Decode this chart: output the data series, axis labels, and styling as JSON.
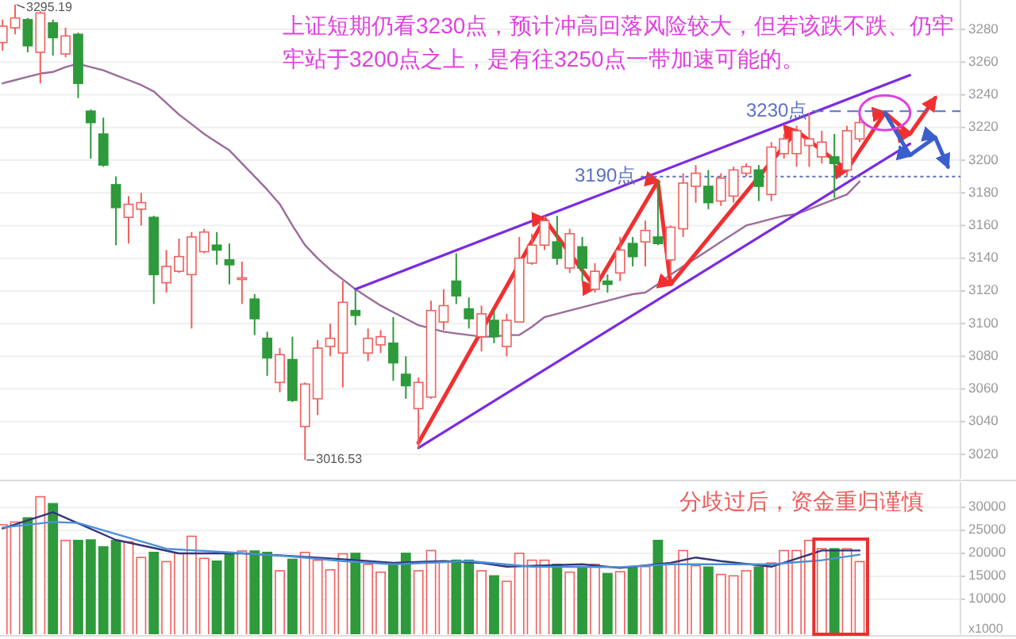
{
  "chart_data": [
    {
      "type": "candlestick",
      "categories": [
        null,
        null,
        null,
        null,
        null,
        null,
        null,
        null,
        null,
        null,
        null,
        null,
        null,
        null,
        null,
        null,
        null,
        null,
        null,
        null,
        null,
        null,
        null,
        null,
        null,
        null,
        null,
        null,
        null,
        null,
        null,
        null,
        null,
        null,
        null,
        null,
        null,
        null,
        null,
        null,
        null,
        null,
        null,
        null,
        null,
        null,
        null,
        null,
        null,
        null,
        null,
        null,
        null,
        null,
        null,
        null,
        null,
        null,
        null,
        null,
        null,
        null,
        null,
        null,
        null,
        null,
        null,
        null,
        null,
        null,
        null,
        null,
        null,
        null,
        null,
        null
      ],
      "ohlc": [
        [
          3272,
          3286,
          3267,
          3282
        ],
        [
          3281,
          3295.19,
          3277,
          3287
        ],
        [
          3286,
          3287,
          3266,
          3270
        ],
        [
          3266,
          3291,
          3247,
          3290
        ],
        [
          3284,
          3286,
          3264,
          3275
        ],
        [
          3265,
          3281,
          3263,
          3276
        ],
        [
          3277,
          3278,
          3238,
          3247
        ],
        [
          3230,
          3231,
          3201,
          3223
        ],
        [
          3216,
          3226,
          3196,
          3197
        ],
        [
          3185,
          3190,
          3148,
          3171
        ],
        [
          3165,
          3178,
          3149,
          3173
        ],
        [
          3170,
          3180,
          3160,
          3174
        ],
        [
          3165,
          3166,
          3112,
          3130
        ],
        [
          3125,
          3145,
          3119,
          3135
        ],
        [
          3132,
          3152,
          3131,
          3141
        ],
        [
          3130,
          3156,
          3097,
          3153
        ],
        [
          3144,
          3158,
          3143,
          3156
        ],
        [
          3148,
          3156,
          3136,
          3145
        ],
        [
          3139,
          3149,
          3124,
          3136
        ],
        [
          3127,
          3138,
          3112,
          3128
        ],
        [
          3115,
          3118,
          3093,
          3103
        ],
        [
          3091,
          3095,
          3068,
          3079
        ],
        [
          3064,
          3085,
          3058,
          3081
        ],
        [
          3078,
          3092,
          3052,
          3053
        ],
        [
          3037,
          3064,
          3016.53,
          3063
        ],
        [
          3054,
          3090,
          3044,
          3085
        ],
        [
          3086,
          3100,
          3080,
          3091
        ],
        [
          3082,
          3126,
          3061,
          3113
        ],
        [
          3108,
          3121,
          3099,
          3105
        ],
        [
          3082,
          3097,
          3077,
          3091
        ],
        [
          3087,
          3096,
          3082,
          3092
        ],
        [
          3088,
          3104,
          3065,
          3076
        ],
        [
          3069,
          3080,
          3054,
          3062
        ],
        [
          3048,
          3067,
          3024,
          3064
        ],
        [
          3055,
          3114,
          3054,
          3108
        ],
        [
          3101,
          3121,
          3096,
          3111
        ],
        [
          3126,
          3143,
          3112,
          3117
        ],
        [
          3109,
          3116,
          3097,
          3103
        ],
        [
          3092,
          3111,
          3083,
          3106
        ],
        [
          3102,
          3108,
          3088,
          3092
        ],
        [
          3086,
          3106,
          3080,
          3102
        ],
        [
          3101,
          3153,
          3101,
          3140
        ],
        [
          3137,
          3155,
          3136,
          3148
        ],
        [
          3148,
          3166,
          3145,
          3163
        ],
        [
          3150,
          3166,
          3136,
          3140
        ],
        [
          3134,
          3158,
          3131,
          3155
        ],
        [
          3147,
          3153,
          3126,
          3134
        ],
        [
          3121,
          3137,
          3119,
          3132
        ],
        [
          3126,
          3130,
          3119,
          3124
        ],
        [
          3131,
          3153,
          3126,
          3145
        ],
        [
          3149,
          3153,
          3135,
          3141
        ],
        [
          3150,
          3163,
          3135,
          3157
        ],
        [
          3153,
          3187,
          3148,
          3149
        ],
        [
          3139,
          3160,
          3129,
          3159
        ],
        [
          3158,
          3192,
          3153,
          3186
        ],
        [
          3184,
          3197,
          3174,
          3192
        ],
        [
          3184,
          3194,
          3170,
          3174
        ],
        [
          3175,
          3192,
          3172,
          3189
        ],
        [
          3178,
          3196,
          3174,
          3194
        ],
        [
          3192,
          3198,
          3190,
          3196
        ],
        [
          3194,
          3197,
          3175,
          3184
        ],
        [
          3179,
          3211,
          3175,
          3208
        ],
        [
          3204,
          3216,
          3201,
          3213
        ],
        [
          3204,
          3221,
          3196,
          3218
        ],
        [
          3209,
          3229,
          3196,
          3213
        ],
        [
          3202,
          3218,
          3198,
          3211
        ],
        [
          3202,
          3216,
          3177,
          3198
        ],
        [
          3194,
          3221,
          3190,
          3218
        ],
        [
          3213,
          3226,
          3211,
          3223
        ],
        null,
        null,
        null,
        null,
        null,
        null,
        null
      ],
      "colors": [
        "#f0605e",
        "#f0605e",
        "#2e9a3b",
        "#f0605e",
        "#2e9a3b",
        "#f0605e",
        "#2e9a3b",
        "#2e9a3b",
        "#2e9a3b",
        "#2e9a3b",
        "#f0605e",
        "#f0605e",
        "#2e9a3b",
        "#f0605e",
        "#f0605e",
        "#f0605e",
        "#f0605e",
        "#2e9a3b",
        "#2e9a3b",
        "#f0605e",
        "#2e9a3b",
        "#2e9a3b",
        "#f0605e",
        "#2e9a3b",
        "#f0605e",
        "#f0605e",
        "#f0605e",
        "#f0605e",
        "#2e9a3b",
        "#f0605e",
        "#f0605e",
        "#2e9a3b",
        "#2e9a3b",
        "#f0605e",
        "#f0605e",
        "#f0605e",
        "#2e9a3b",
        "#2e9a3b",
        "#f0605e",
        "#2e9a3b",
        "#f0605e",
        "#f0605e",
        "#f0605e",
        "#f0605e",
        "#2e9a3b",
        "#f0605e",
        "#2e9a3b",
        "#f0605e",
        "#2e9a3b",
        "#f0605e",
        "#2e9a3b",
        "#f0605e",
        "#2e9a3b",
        "#f0605e",
        "#f0605e",
        "#f0605e",
        "#2e9a3b",
        "#f0605e",
        "#f0605e",
        "#f0605e",
        "#2e9a3b",
        "#f0605e",
        "#f0605e",
        "#f0605e",
        "#f0605e",
        "#f0605e",
        "#2e9a3b",
        "#f0605e",
        "#f0605e",
        null,
        null,
        null,
        null,
        null,
        null,
        null
      ],
      "series": [
        {
          "type": "line",
          "color": "#9b6b9b",
          "values": [
            3247,
            3249,
            3251,
            3253,
            3254,
            3257,
            3259,
            3257,
            3255,
            3252,
            3249,
            3246,
            3242,
            3235,
            3228,
            3222,
            3216,
            3211,
            3206,
            3198,
            3190,
            3182,
            3173,
            3160,
            3148,
            3140,
            3133,
            3127,
            3121,
            3116,
            3111,
            3107,
            3103,
            3099,
            3097,
            3095,
            3094,
            3093,
            3092,
            3092,
            3093,
            3093,
            3098,
            3104,
            3106,
            3108,
            3110,
            3112,
            3114,
            3116,
            3118,
            3119,
            3124,
            3130,
            3135,
            3140,
            3145,
            3150,
            3155,
            3160,
            3162,
            3164,
            3166,
            3167,
            3170,
            3173,
            3176,
            3179,
            3187,
            null,
            null,
            null,
            null,
            null,
            null,
            null
          ]
        },
        {
          "type": "line",
          "color": "#7a2be2",
          "values": [
            null,
            null,
            null,
            null,
            null,
            null,
            null,
            null,
            null,
            null,
            null,
            null,
            null,
            null,
            null,
            null,
            null,
            null,
            null,
            null,
            null,
            null,
            null,
            null,
            null,
            null,
            null,
            null,
            3121,
            null,
            null,
            null,
            null,
            null,
            null,
            null,
            null,
            null,
            null,
            null,
            null,
            null,
            null,
            null,
            null,
            null,
            null,
            null,
            null,
            null,
            null,
            null,
            null,
            null,
            null,
            null,
            null,
            null,
            null,
            null,
            null,
            null,
            null,
            null,
            null,
            null,
            null,
            null,
            null,
            null,
            null,
            null,
            3252,
            null,
            null,
            null
          ]
        },
        {
          "type": "line",
          "color": "#7a2be2",
          "values": [
            null,
            null,
            null,
            null,
            null,
            null,
            null,
            null,
            null,
            null,
            null,
            null,
            null,
            null,
            null,
            null,
            null,
            null,
            null,
            null,
            null,
            null,
            null,
            null,
            null,
            null,
            null,
            null,
            null,
            null,
            null,
            null,
            null,
            3024,
            null,
            null,
            null,
            null,
            null,
            null,
            null,
            null,
            null,
            null,
            null,
            null,
            null,
            null,
            null,
            null,
            null,
            null,
            null,
            null,
            null,
            null,
            null,
            null,
            null,
            null,
            null,
            null,
            null,
            null,
            null,
            null,
            null,
            null,
            null,
            null,
            null,
            null,
            3210,
            null,
            null,
            null
          ]
        },
        {
          "type": "line",
          "color": "#f03030",
          "values": [
            null,
            null,
            null,
            null,
            null,
            null,
            null,
            null,
            null,
            null,
            null,
            null,
            null,
            null,
            null,
            null,
            null,
            null,
            null,
            null,
            null,
            null,
            null,
            null,
            null,
            null,
            null,
            null,
            null,
            null,
            null,
            null,
            null,
            3027,
            null,
            null,
            null,
            null,
            null,
            null,
            null,
            null,
            null,
            3164,
            null,
            null,
            null,
            3122,
            null,
            null,
            null,
            null,
            3187,
            3124,
            null,
            null,
            null,
            null,
            null,
            null,
            null,
            null,
            null,
            3218,
            null,
            null,
            null,
            3194,
            null,
            null,
            3229,
            null,
            3216,
            null,
            3238,
            null
          ]
        },
        {
          "type": "line",
          "color": "#3a5fcd",
          "values": [
            null,
            null,
            null,
            null,
            null,
            null,
            null,
            null,
            null,
            null,
            null,
            null,
            null,
            null,
            null,
            null,
            null,
            null,
            null,
            null,
            null,
            null,
            null,
            null,
            null,
            null,
            null,
            null,
            null,
            null,
            null,
            null,
            null,
            null,
            null,
            null,
            null,
            null,
            null,
            null,
            null,
            null,
            null,
            null,
            null,
            null,
            null,
            null,
            null,
            null,
            null,
            null,
            null,
            null,
            null,
            null,
            null,
            null,
            null,
            null,
            null,
            null,
            null,
            null,
            null,
            null,
            null,
            null,
            null,
            null,
            3229,
            null,
            3203,
            null,
            3214,
            3196
          ]
        }
      ],
      "ref_lines": [
        {
          "axis": "y",
          "value": 3190,
          "label": "3190点",
          "color": "#5b6fc4",
          "line_style": "dotted"
        },
        {
          "axis": "y",
          "value": 3230,
          "label": "3230点",
          "color": "#5b6fc4",
          "line_style": "dashed"
        }
      ],
      "annotations": [
        "上证短期仍看3230点，预计冲高回落风险较大，但若该跌不跌、仍牢牢站于3200点之上，是有往3250点一带加速可能的。",
        "3295.19",
        "3016.53"
      ],
      "ylim": [
        3005,
        3298
      ],
      "yticks": [
        3020,
        3040,
        3060,
        3080,
        3100,
        3120,
        3140,
        3160,
        3180,
        3200,
        3220,
        3240,
        3260,
        3280
      ],
      "grid": "y"
    },
    {
      "type": "bar",
      "categories": [
        null,
        null,
        null,
        null,
        null,
        null,
        null,
        null,
        null,
        null,
        null,
        null,
        null,
        null,
        null,
        null,
        null,
        null,
        null,
        null,
        null,
        null,
        null,
        null,
        null,
        null,
        null,
        null,
        null,
        null,
        null,
        null,
        null,
        null,
        null,
        null,
        null,
        null,
        null,
        null,
        null,
        null,
        null,
        null,
        null,
        null,
        null,
        null,
        null,
        null,
        null,
        null,
        null,
        null,
        null,
        null,
        null,
        null,
        null,
        null,
        null,
        null,
        null,
        null,
        null,
        null,
        null,
        null,
        null,
        null,
        null,
        null,
        null,
        null,
        null,
        null
      ],
      "series": [
        {
          "type": "bar",
          "values": [
            26200,
            26800,
            27700,
            32300,
            30800,
            22800,
            22800,
            22900,
            21400,
            22800,
            22500,
            19100,
            20200,
            18200,
            20000,
            23700,
            18900,
            18300,
            19700,
            20500,
            20500,
            20200,
            16200,
            18700,
            20200,
            18500,
            16400,
            19900,
            20000,
            17600,
            15900,
            17700,
            20000,
            16200,
            20600,
            18200,
            18500,
            18500,
            16200,
            15100,
            13900,
            20000,
            18500,
            18500,
            17600,
            15900,
            17100,
            17600,
            15600,
            16000,
            17100,
            17100,
            22800,
            17600,
            20600,
            17300,
            17000,
            15400,
            15100,
            16200,
            17000,
            17900,
            20600,
            20600,
            22800,
            21000,
            21000,
            21000,
            18200,
            null,
            null,
            null,
            null,
            null,
            null,
            null
          ],
          "colors": [
            "#f0605e",
            "#f0605e",
            "#2e9a3b",
            "#f0605e",
            "#2e9a3b",
            "#f0605e",
            "#2e9a3b",
            "#2e9a3b",
            "#2e9a3b",
            "#2e9a3b",
            "#f0605e",
            "#f0605e",
            "#2e9a3b",
            "#f0605e",
            "#f0605e",
            "#f0605e",
            "#f0605e",
            "#2e9a3b",
            "#2e9a3b",
            "#f0605e",
            "#2e9a3b",
            "#2e9a3b",
            "#f0605e",
            "#2e9a3b",
            "#f0605e",
            "#f0605e",
            "#f0605e",
            "#f0605e",
            "#2e9a3b",
            "#f0605e",
            "#f0605e",
            "#2e9a3b",
            "#2e9a3b",
            "#f0605e",
            "#f0605e",
            "#f0605e",
            "#2e9a3b",
            "#2e9a3b",
            "#f0605e",
            "#2e9a3b",
            "#f0605e",
            "#f0605e",
            "#f0605e",
            "#f0605e",
            "#2e9a3b",
            "#f0605e",
            "#2e9a3b",
            "#f0605e",
            "#2e9a3b",
            "#f0605e",
            "#2e9a3b",
            "#f0605e",
            "#2e9a3b",
            "#f0605e",
            "#f0605e",
            "#f0605e",
            "#2e9a3b",
            "#f0605e",
            "#f0605e",
            "#f0605e",
            "#2e9a3b",
            "#f0605e",
            "#f0605e",
            "#f0605e",
            "#f0605e",
            "#f0605e",
            "#2e9a3b",
            "#f0605e",
            "#f0605e",
            null,
            null,
            null,
            null,
            null,
            null,
            null
          ]
        },
        {
          "type": "line",
          "color": "#35357a",
          "values": [
            25400,
            null,
            null,
            null,
            28900,
            null,
            null,
            null,
            null,
            22900,
            null,
            null,
            null,
            null,
            20000,
            null,
            null,
            null,
            null,
            20000,
            null,
            null,
            null,
            19400,
            null,
            null,
            null,
            18700,
            null,
            null,
            null,
            17900,
            null,
            null,
            null,
            18300,
            null,
            null,
            17900,
            null,
            17100,
            null,
            null,
            null,
            null,
            null,
            17600,
            null,
            null,
            16800,
            null,
            null,
            null,
            17900,
            null,
            19100,
            null,
            18300,
            null,
            null,
            null,
            17100,
            null,
            null,
            null,
            20600,
            null,
            null,
            20600,
            null,
            null,
            null,
            null,
            null,
            null,
            null
          ]
        },
        {
          "type": "line",
          "color": "#4a90d9",
          "values": [
            25600,
            null,
            null,
            null,
            26800,
            null,
            26600,
            null,
            null,
            null,
            null,
            null,
            null,
            21000,
            null,
            null,
            null,
            null,
            20200,
            null,
            null,
            null,
            null,
            19300,
            null,
            null,
            null,
            18300,
            null,
            null,
            null,
            17600,
            null,
            null,
            null,
            null,
            null,
            18300,
            null,
            null,
            null,
            null,
            17100,
            null,
            null,
            null,
            null,
            null,
            null,
            17000,
            null,
            null,
            null,
            17600,
            null,
            null,
            null,
            17600,
            null,
            null,
            null,
            17600,
            null,
            null,
            null,
            18500,
            null,
            null,
            19700,
            null,
            null,
            null,
            null,
            null,
            null,
            null
          ]
        }
      ],
      "annotations": [
        "分歧过后，资金重归谨慎"
      ],
      "ylabel": "x1000",
      "ylim": [
        2400,
        35500
      ],
      "yticks": [
        10000,
        15000,
        20000,
        25000,
        30000
      ],
      "grid": "y"
    }
  ]
}
